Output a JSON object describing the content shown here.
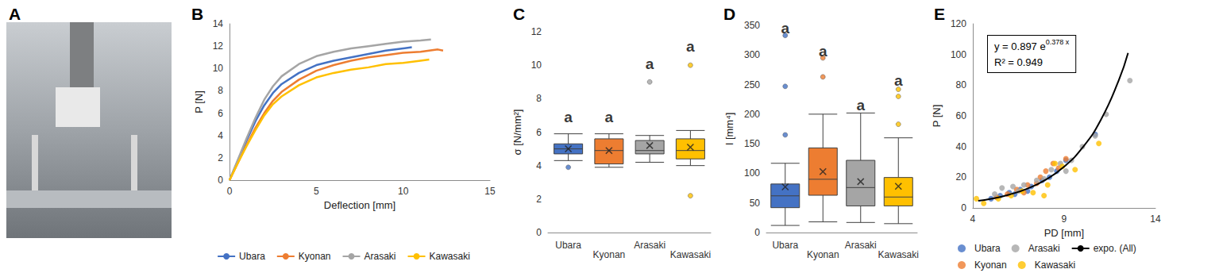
{
  "chart_data": [
    {
      "type": "image",
      "title": "A"
    },
    {
      "type": "line",
      "title": "B",
      "xlabel": "Deflection [mm]",
      "ylabel": "P [N]",
      "xlim": [
        0,
        15
      ],
      "xticks": [
        0,
        5,
        10,
        15
      ],
      "ylim": [
        0,
        14
      ],
      "yticks": [
        0,
        2,
        4,
        6,
        8,
        10,
        12,
        14
      ],
      "grid": false,
      "legend": "bottom",
      "series": [
        {
          "name": "Ubara",
          "color": "#4472C4",
          "x": [
            0,
            0.5,
            1,
            1.5,
            2,
            2.5,
            3,
            4,
            5,
            6,
            7,
            8,
            9,
            10,
            10.5
          ],
          "values": [
            0,
            1.8,
            3.6,
            5.3,
            6.7,
            7.8,
            8.6,
            9.6,
            10.3,
            10.7,
            11.0,
            11.3,
            11.6,
            11.8,
            11.9
          ]
        },
        {
          "name": "Kyonan",
          "color": "#ED7D31",
          "x": [
            0,
            0.5,
            1,
            1.5,
            2,
            2.5,
            3,
            4,
            5,
            6,
            7,
            8,
            9,
            10,
            11,
            12,
            12.3
          ],
          "values": [
            0,
            1.6,
            3.2,
            4.7,
            6.0,
            7.1,
            7.9,
            9.0,
            9.8,
            10.3,
            10.7,
            11.0,
            11.2,
            11.4,
            11.5,
            11.7,
            11.6
          ]
        },
        {
          "name": "Arasaki",
          "color": "#A5A5A5",
          "x": [
            0,
            0.5,
            1,
            1.5,
            2,
            2.5,
            3,
            4,
            5,
            6,
            7,
            8,
            9,
            10,
            11,
            11.6
          ],
          "values": [
            0,
            1.9,
            3.8,
            5.6,
            7.2,
            8.4,
            9.3,
            10.4,
            11.1,
            11.5,
            11.8,
            12.0,
            12.2,
            12.4,
            12.5,
            12.6
          ]
        },
        {
          "name": "Kawasaki",
          "color": "#FFC000",
          "x": [
            0,
            0.5,
            1,
            1.5,
            2,
            2.5,
            3,
            4,
            5,
            6,
            7,
            8,
            9,
            10,
            11,
            11.5
          ],
          "values": [
            0,
            1.6,
            3.1,
            4.5,
            5.8,
            6.8,
            7.5,
            8.5,
            9.2,
            9.6,
            9.9,
            10.1,
            10.4,
            10.5,
            10.7,
            10.8
          ]
        }
      ]
    },
    {
      "type": "boxplot",
      "title": "C",
      "ylabel": "σ [N/mm²]",
      "ylim": [
        0,
        12
      ],
      "yticks": [
        0,
        2,
        4,
        6,
        8,
        10,
        12
      ],
      "grid": false,
      "categories": [
        "Ubara",
        "Kyonan",
        "Arasaki",
        "Kawasaki"
      ],
      "colors": [
        "#4472C4",
        "#ED7D31",
        "#A5A5A5",
        "#FFC000"
      ],
      "values": [
        [
          4.3,
          4.7,
          5.0,
          5.3,
          5.9
        ],
        [
          3.9,
          4.1,
          4.9,
          5.6,
          5.9
        ],
        [
          4.2,
          4.7,
          4.9,
          5.5,
          5.8
        ],
        [
          4.0,
          4.4,
          4.9,
          5.6,
          6.1
        ]
      ],
      "means": [
        5.0,
        4.9,
        5.2,
        5.1
      ],
      "outliers": [
        [
          3.9
        ],
        [],
        [
          9.0
        ],
        [
          2.2,
          10.0
        ]
      ],
      "annotations": [
        {
          "text": "a",
          "x": "Ubara",
          "y": 6.9
        },
        {
          "text": "a",
          "x": "Kyonan",
          "y": 6.9
        },
        {
          "text": "a",
          "x": "Arasaki",
          "y": 10.1
        },
        {
          "text": "a",
          "x": "Kawasaki",
          "y": 11.1
        }
      ]
    },
    {
      "type": "boxplot",
      "title": "D",
      "ylabel": "I [mm⁴]",
      "ylim": [
        0,
        350
      ],
      "yticks": [
        0,
        50,
        100,
        150,
        200,
        250,
        300,
        350
      ],
      "grid": false,
      "categories": [
        "Ubara",
        "Kyonan",
        "Arasaki",
        "Kawasaki"
      ],
      "colors": [
        "#4472C4",
        "#ED7D31",
        "#A5A5A5",
        "#FFC000"
      ],
      "values": [
        [
          12,
          42,
          62,
          82,
          117
        ],
        [
          18,
          63,
          90,
          143,
          200
        ],
        [
          17,
          45,
          76,
          122,
          202
        ],
        [
          15,
          45,
          60,
          93,
          160
        ]
      ],
      "means": [
        77,
        103,
        86,
        78
      ],
      "outliers": [
        [
          165,
          247,
          333
        ],
        [
          263,
          295
        ],
        [],
        [
          183,
          230,
          242
        ]
      ],
      "annotations": [
        {
          "text": "a",
          "x": "Ubara",
          "y": 345
        },
        {
          "text": "a",
          "x": "Kyonan",
          "y": 307
        },
        {
          "text": "a",
          "x": "Arasaki",
          "y": 215
        },
        {
          "text": "a",
          "x": "Kawasaki",
          "y": 257
        }
      ]
    },
    {
      "type": "scatter",
      "title": "E",
      "xlabel": "PD [mm]",
      "ylabel": "P [N]",
      "xlim": [
        4,
        14
      ],
      "xticks": [
        4,
        9,
        14
      ],
      "ylim": [
        0,
        120
      ],
      "yticks": [
        0,
        20,
        40,
        60,
        80,
        100,
        120
      ],
      "grid": false,
      "legend": "bottom",
      "series": [
        {
          "name": "Ubara",
          "color": "#4472C4",
          "marker": "circle",
          "x": [
            10.7,
            9.1,
            8.6,
            7.8,
            7.2,
            6.6,
            6.0,
            5.5,
            5.0,
            7.0,
            8.2,
            6.3
          ],
          "values": [
            48,
            31,
            24,
            18,
            14,
            12,
            10,
            8,
            6,
            11,
            20,
            9
          ]
        },
        {
          "name": "Kyonan",
          "color": "#ED7D31",
          "marker": "circle",
          "x": [
            8.4,
            9.1,
            8.0,
            7.5,
            7.0,
            6.4,
            5.9,
            5.3,
            6.8,
            8.7,
            7.7
          ],
          "values": [
            29,
            32,
            24,
            16,
            15,
            12,
            9,
            7,
            10,
            26,
            20
          ]
        },
        {
          "name": "Arasaki",
          "color": "#A5A5A5",
          "marker": "circle",
          "x": [
            12.6,
            11.3,
            10.7,
            10.0,
            9.4,
            8.8,
            8.3,
            7.5,
            6.8,
            6.2,
            5.6,
            5.2,
            6.5,
            7.9,
            9.1
          ],
          "values": [
            83,
            61,
            47,
            40,
            31,
            29,
            25,
            18,
            15,
            14,
            13,
            9,
            11,
            19,
            24
          ]
        },
        {
          "name": "Kawasaki",
          "color": "#FFC000",
          "marker": "circle",
          "x": [
            10.9,
            8.5,
            8.9,
            4.2,
            4.6,
            5.4,
            6.1,
            7.3,
            7.9,
            6.7,
            8.1,
            9.6
          ],
          "values": [
            42,
            29,
            27,
            6,
            3,
            6,
            8,
            10,
            8,
            11,
            15,
            25
          ]
        },
        {
          "name": "expo. (All)",
          "color": "#000000",
          "type": "line",
          "line_style": "solid",
          "x": [
            4.3,
            5,
            6,
            7,
            8,
            9,
            10,
            11,
            12,
            12.5
          ],
          "values": [
            4.6,
            5.9,
            8.7,
            12.6,
            18.4,
            26.9,
            39.2,
            57.2,
            83.5,
            101.0
          ]
        }
      ],
      "annotations": [
        {
          "text": "y = 0.897 e",
          "superscript": "0.378 x"
        },
        {
          "text": "R² = 0.949"
        }
      ]
    }
  ]
}
